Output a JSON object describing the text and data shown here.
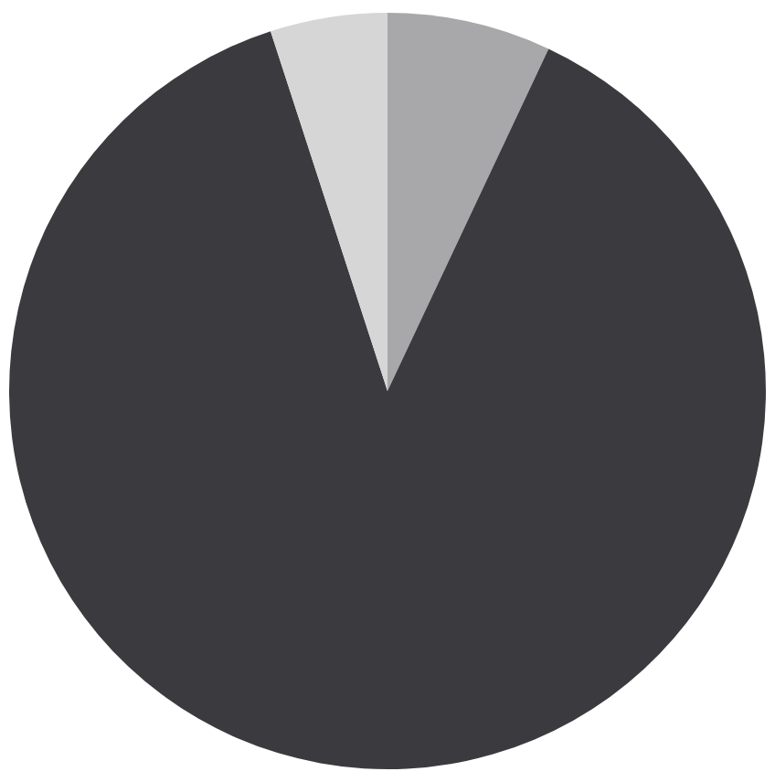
{
  "chart_data": {
    "type": "pie",
    "categories": [
      null,
      null,
      null
    ],
    "values": [
      7,
      88,
      5
    ],
    "colors": [
      "#a8a8aa",
      "#3b3b3f",
      "#d6d6d6"
    ]
  }
}
